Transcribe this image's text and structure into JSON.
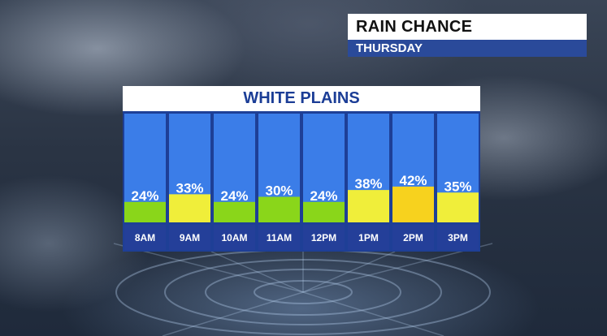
{
  "title": {
    "main": "RAIN CHANCE",
    "sub": "THURSDAY"
  },
  "location": "WHITE PLAINS",
  "colors": {
    "sky": "#3b7de8",
    "low": "#8ad61a",
    "mid": "#f0ee3a",
    "high": "#f7d21e",
    "panel": "#1e3f96",
    "label_band": "#243f99"
  },
  "chart_data": {
    "type": "bar",
    "title": "WHITE PLAINS",
    "categories": [
      "8AM",
      "9AM",
      "10AM",
      "11AM",
      "12PM",
      "1PM",
      "2PM",
      "3PM"
    ],
    "values": [
      24,
      33,
      24,
      30,
      24,
      38,
      42,
      35
    ],
    "value_labels": [
      "24%",
      "33%",
      "24%",
      "30%",
      "24%",
      "38%",
      "42%",
      "35%"
    ],
    "bar_colors": [
      "low",
      "mid",
      "low",
      "low",
      "low",
      "mid",
      "high",
      "mid"
    ],
    "ylim": [
      0,
      100
    ],
    "xlabel": "",
    "ylabel": "",
    "grid": false,
    "legend": "none"
  }
}
